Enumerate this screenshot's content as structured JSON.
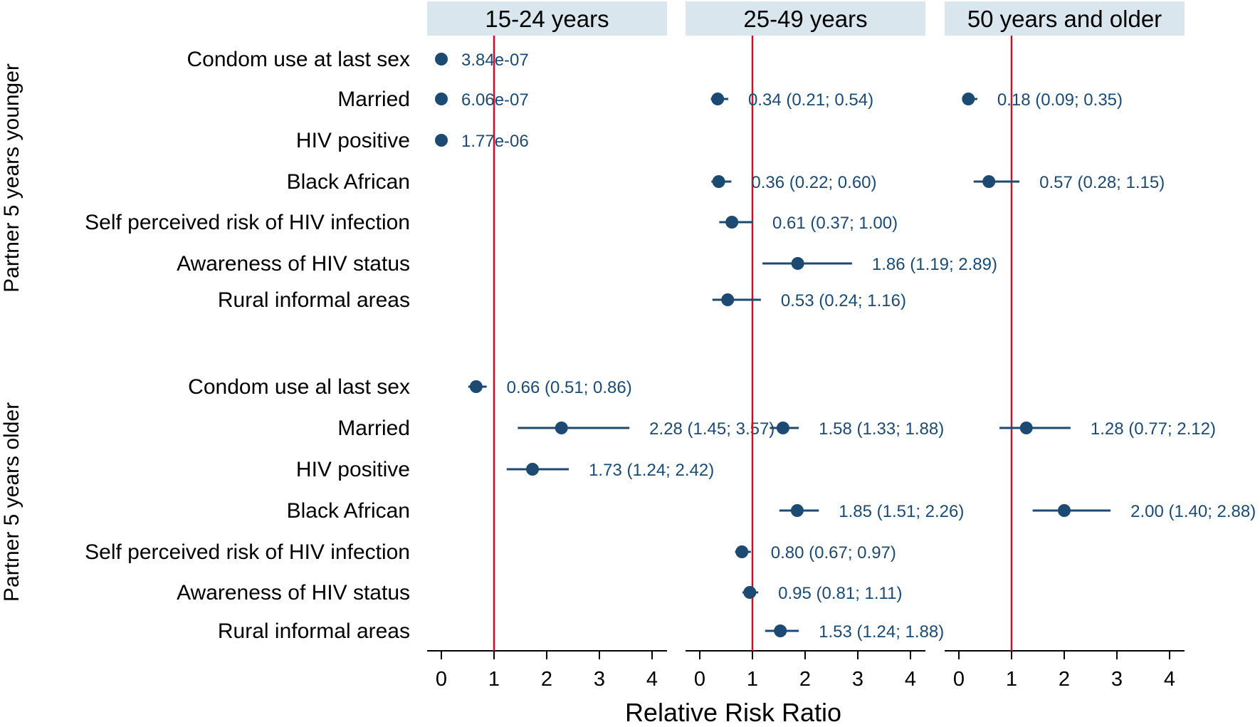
{
  "chart_data": {
    "type": "forest",
    "x_axis_title": "Relative Risk Ratio",
    "xlim": [
      -0.2,
      4.2
    ],
    "x_ticks": [
      "0",
      "1",
      "2",
      "3",
      "4"
    ],
    "reference_value": 1,
    "groups": [
      {
        "name": "Partner 5 years younger",
        "rows": [
          "Condom use at last sex",
          "Married",
          "HIV positive",
          "Black African",
          "Self perceived risk of HIV infection",
          "Awareness of HIV status",
          "Rural informal areas"
        ]
      },
      {
        "name": "Partner 5 years older",
        "rows": [
          "Condom use al last sex",
          "Married",
          "HIV positive",
          "Black African",
          "Self perceived risk of HIV infection",
          "Awareness of HIV status",
          "Rural informal areas"
        ]
      }
    ],
    "panels": [
      {
        "title": "15-24 years",
        "estimates": [
          {
            "group": 0,
            "row": 0,
            "value": 3.84e-07,
            "lo": 3.84e-07,
            "hi": 3.84e-07,
            "label": "3.84e-07"
          },
          {
            "group": 0,
            "row": 1,
            "value": 6.06e-07,
            "lo": 6.06e-07,
            "hi": 6.06e-07,
            "label": "6.06e-07"
          },
          {
            "group": 0,
            "row": 2,
            "value": 1.77e-06,
            "lo": 1.77e-06,
            "hi": 1.77e-06,
            "label": "1.77e-06"
          },
          {
            "group": 1,
            "row": 0,
            "value": 0.66,
            "lo": 0.51,
            "hi": 0.86,
            "label": "0.66 (0.51; 0.86)"
          },
          {
            "group": 1,
            "row": 1,
            "value": 2.28,
            "lo": 1.45,
            "hi": 3.57,
            "label": "2.28 (1.45; 3.57)"
          },
          {
            "group": 1,
            "row": 2,
            "value": 1.73,
            "lo": 1.24,
            "hi": 2.42,
            "label": "1.73 (1.24; 2.42)"
          }
        ]
      },
      {
        "title": "25-49 years",
        "estimates": [
          {
            "group": 0,
            "row": 1,
            "value": 0.34,
            "lo": 0.21,
            "hi": 0.54,
            "label": "0.34 (0.21; 0.54)"
          },
          {
            "group": 0,
            "row": 3,
            "value": 0.36,
            "lo": 0.22,
            "hi": 0.6,
            "label": "0.36 (0.22; 0.60)"
          },
          {
            "group": 0,
            "row": 4,
            "value": 0.61,
            "lo": 0.37,
            "hi": 1.0,
            "label": "0.61 (0.37; 1.00)"
          },
          {
            "group": 0,
            "row": 5,
            "value": 1.86,
            "lo": 1.19,
            "hi": 2.89,
            "label": "1.86 (1.19; 2.89)"
          },
          {
            "group": 0,
            "row": 6,
            "value": 0.53,
            "lo": 0.24,
            "hi": 1.16,
            "label": "0.53 (0.24; 1.16)"
          },
          {
            "group": 1,
            "row": 1,
            "value": 1.58,
            "lo": 1.33,
            "hi": 1.88,
            "label": "1.58 (1.33; 1.88)"
          },
          {
            "group": 1,
            "row": 3,
            "value": 1.85,
            "lo": 1.51,
            "hi": 2.26,
            "label": "1.85 (1.51; 2.26)"
          },
          {
            "group": 1,
            "row": 4,
            "value": 0.8,
            "lo": 0.67,
            "hi": 0.97,
            "label": "0.80 (0.67; 0.97)"
          },
          {
            "group": 1,
            "row": 5,
            "value": 0.95,
            "lo": 0.81,
            "hi": 1.11,
            "label": "0.95 (0.81; 1.11)"
          },
          {
            "group": 1,
            "row": 6,
            "value": 1.53,
            "lo": 1.24,
            "hi": 1.88,
            "label": "1.53 (1.24; 1.88)"
          }
        ]
      },
      {
        "title": "50 years and older",
        "estimates": [
          {
            "group": 0,
            "row": 1,
            "value": 0.18,
            "lo": 0.09,
            "hi": 0.35,
            "label": "0.18 (0.09; 0.35)"
          },
          {
            "group": 0,
            "row": 3,
            "value": 0.57,
            "lo": 0.28,
            "hi": 1.15,
            "label": "0.57 (0.28; 1.15)"
          },
          {
            "group": 1,
            "row": 1,
            "value": 1.28,
            "lo": 0.77,
            "hi": 2.12,
            "label": "1.28 (0.77; 2.12)"
          },
          {
            "group": 1,
            "row": 3,
            "value": 2.0,
            "lo": 1.4,
            "hi": 2.88,
            "label": "2.00 (1.40; 2.88)"
          }
        ]
      }
    ]
  },
  "colors": {
    "marker": "#1c4a72",
    "reference_line": "#c8102e",
    "panel_header": "#d9e6ed"
  }
}
